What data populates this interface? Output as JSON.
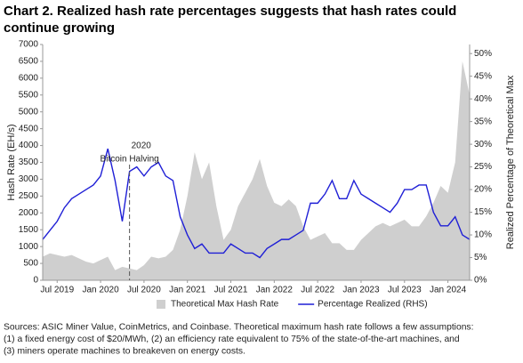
{
  "chart_data": {
    "type": "combo",
    "title": [
      "Chart 2. Realized hash rate percentages suggests that hash rates could",
      "continue growing"
    ],
    "x": [
      "2019-05",
      "2019-06",
      "2019-07",
      "2019-08",
      "2019-09",
      "2019-10",
      "2019-11",
      "2019-12",
      "2020-01",
      "2020-02",
      "2020-03",
      "2020-04",
      "2020-05",
      "2020-06",
      "2020-07",
      "2020-08",
      "2020-09",
      "2020-10",
      "2020-11",
      "2020-12",
      "2021-01",
      "2021-02",
      "2021-03",
      "2021-04",
      "2021-05",
      "2021-06",
      "2021-07",
      "2021-08",
      "2021-09",
      "2021-10",
      "2021-11",
      "2021-12",
      "2022-01",
      "2022-02",
      "2022-03",
      "2022-04",
      "2022-05",
      "2022-06",
      "2022-07",
      "2022-08",
      "2022-09",
      "2022-10",
      "2022-11",
      "2022-12",
      "2023-01",
      "2023-02",
      "2023-03",
      "2023-04",
      "2023-05",
      "2023-06",
      "2023-07",
      "2023-08",
      "2023-09",
      "2023-10",
      "2023-11",
      "2023-12",
      "2024-01",
      "2024-02",
      "2024-03",
      "2024-04"
    ],
    "xlim": [
      "2019-05",
      "2024-04"
    ],
    "xticks": [
      {
        "value": "2019-07",
        "label": "Jul 2019"
      },
      {
        "value": "2020-01",
        "label": "Jan 2020"
      },
      {
        "value": "2020-07",
        "label": "Jul 2020"
      },
      {
        "value": "2021-01",
        "label": "Jan 2021"
      },
      {
        "value": "2021-07",
        "label": "Jul 2021"
      },
      {
        "value": "2022-01",
        "label": "Jan 2022"
      },
      {
        "value": "2022-07",
        "label": "Jul 2022"
      },
      {
        "value": "2023-01",
        "label": "Jan 2023"
      },
      {
        "value": "2023-07",
        "label": "Jul 2023"
      },
      {
        "value": "2024-01",
        "label": "Jan 2024"
      }
    ],
    "ylabel": "Hash Rate (EH/s)",
    "ylim": [
      0,
      7000
    ],
    "yticks": [
      0,
      500,
      1000,
      1500,
      2000,
      2500,
      3000,
      3500,
      4000,
      4500,
      5000,
      5500,
      6000,
      6500,
      7000
    ],
    "y2label": "Realized Percentage of Theoretical Max",
    "y2lim": [
      0,
      52
    ],
    "y2ticks": [
      {
        "value": 0,
        "label": "0%"
      },
      {
        "value": 5,
        "label": "5%"
      },
      {
        "value": 10,
        "label": "10%"
      },
      {
        "value": 15,
        "label": "15%"
      },
      {
        "value": 20,
        "label": "20%"
      },
      {
        "value": 25,
        "label": "25%"
      },
      {
        "value": 30,
        "label": "30%"
      },
      {
        "value": 35,
        "label": "35%"
      },
      {
        "value": 40,
        "label": "40%"
      },
      {
        "value": 45,
        "label": "45%"
      },
      {
        "value": 50,
        "label": "50%"
      }
    ],
    "series": [
      {
        "name": "Theoretical Max Hash Rate",
        "type": "area",
        "color": "#cfcfcf",
        "values": [
          700,
          800,
          750,
          700,
          750,
          650,
          550,
          500,
          600,
          700,
          300,
          400,
          350,
          300,
          450,
          700,
          650,
          700,
          900,
          1500,
          2500,
          3800,
          3000,
          3500,
          2200,
          1200,
          1500,
          2200,
          2600,
          3000,
          3600,
          2800,
          2300,
          2200,
          2400,
          2200,
          1600,
          1200,
          1300,
          1400,
          1100,
          1100,
          900,
          900,
          1200,
          1400,
          1600,
          1700,
          1600,
          1700,
          1800,
          1600,
          1600,
          1900,
          2300,
          2800,
          2600,
          3500,
          6500,
          5500
        ]
      },
      {
        "name": "Percentage Realized (RHS)",
        "type": "line",
        "axis": "y2",
        "color": "#1f1fd6",
        "values": [
          9,
          11,
          13,
          16,
          18,
          19,
          20,
          21,
          23,
          29,
          22,
          13,
          24,
          25,
          23,
          25,
          26,
          23,
          22,
          14,
          10,
          7,
          8,
          6,
          6,
          6,
          8,
          7,
          6,
          6,
          5,
          7,
          8,
          9,
          9,
          10,
          11,
          17,
          17,
          19,
          22,
          18,
          18,
          22,
          19,
          18,
          17,
          16,
          15,
          17,
          20,
          20,
          21,
          21,
          15,
          12,
          12,
          14,
          10,
          9
        ]
      }
    ],
    "annotations": [
      {
        "x": "2020-05",
        "lines": [
          "2020",
          "Bitcoin Halving"
        ]
      }
    ],
    "legend": "bottom",
    "source": [
      "Sources: ASIC Miner Value, CoinMetrics, and Coinbase. Theoretical maximum hash rate follows a few assumptions:",
      "(1) a fixed energy cost of $20/MWh, (2) an efficiency rate equivalent to 75% of the state-of-the-art machines, and",
      "(3) miners operate machines to breakeven on energy costs."
    ]
  }
}
